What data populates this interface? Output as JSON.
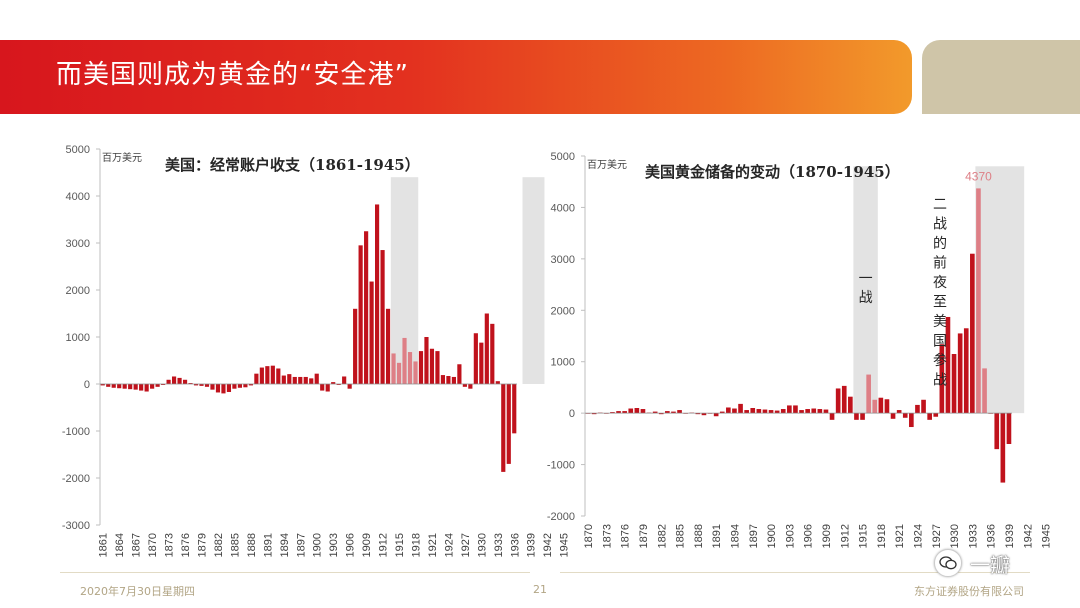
{
  "slide": {
    "title": "而美国则成为黄金的“安全港”",
    "footer_date": "2020年7月30日星期四",
    "page_number": "21",
    "company": "东方证券股份有限公司",
    "watermark": "一瓣"
  },
  "colors": {
    "bar": "#c0121c",
    "bar_light": "#de7f86",
    "shade": "#e3e3e3",
    "banner": "#d7161d"
  },
  "chart_data": [
    {
      "type": "bar",
      "title": "美国：经常账户收支（1861-1945）",
      "unit": "百万美元",
      "ylim": [
        -3000,
        5000
      ],
      "yticks": [
        5000,
        4000,
        3000,
        2000,
        1000,
        0,
        -1000,
        -2000,
        -3000
      ],
      "xticks": [
        "1861",
        "1864",
        "1867",
        "1870",
        "1873",
        "1876",
        "1879",
        "1882",
        "1885",
        "1888",
        "1891",
        "1894",
        "1897",
        "1900",
        "1903",
        "1906",
        "1909",
        "1912",
        "1915",
        "1918",
        "1921",
        "1924",
        "1927",
        "1930",
        "1933",
        "1936",
        "1939",
        "1942",
        "1945"
      ],
      "x_start": 1861,
      "shaded_periods": [
        [
          1914,
          1918
        ],
        [
          1938,
          1941
        ]
      ],
      "values": [
        -30,
        -60,
        -80,
        -90,
        -100,
        -110,
        -120,
        -140,
        -160,
        -100,
        -60,
        -20,
        90,
        160,
        130,
        90,
        20,
        -30,
        -40,
        -60,
        -120,
        -180,
        -200,
        -170,
        -100,
        -80,
        -70,
        -30,
        220,
        350,
        380,
        390,
        330,
        180,
        210,
        150,
        150,
        150,
        120,
        220,
        -140,
        -160,
        40,
        -20,
        160,
        -100,
        1600,
        2950,
        3250,
        2180,
        3820,
        2850,
        1600,
        650,
        450,
        980,
        680,
        480,
        700,
        1000,
        750,
        700,
        190,
        170,
        150,
        420,
        -60,
        -100,
        1080,
        880,
        1500,
        1280,
        60,
        -1870,
        -1700,
        -1050
      ]
    },
    {
      "type": "bar",
      "title": "美国黄金储备的变动（1870-1945）",
      "unit": "百万美元",
      "ylim": [
        -2000,
        5000
      ],
      "yticks": [
        5000,
        4000,
        3000,
        2000,
        1000,
        0,
        -1000,
        -2000
      ],
      "xticks": [
        "1870",
        "1873",
        "1876",
        "1879",
        "1882",
        "1885",
        "1888",
        "1891",
        "1894",
        "1897",
        "1900",
        "1903",
        "1906",
        "1909",
        "1912",
        "1915",
        "1918",
        "1921",
        "1924",
        "1927",
        "1930",
        "1933",
        "1936",
        "1939",
        "1942",
        "1945"
      ],
      "x_start": 1870,
      "shaded_periods": [
        [
          1914,
          1917
        ],
        [
          1934,
          1941
        ]
      ],
      "annotations": [
        "一战",
        "二战的前夜至美国参战"
      ],
      "peak_label": "4370",
      "values": [
        -10,
        -20,
        10,
        -10,
        20,
        40,
        40,
        90,
        100,
        80,
        10,
        30,
        -20,
        40,
        30,
        60,
        -10,
        10,
        -20,
        -40,
        -10,
        -60,
        30,
        110,
        90,
        180,
        60,
        100,
        80,
        70,
        60,
        50,
        80,
        150,
        150,
        60,
        80,
        90,
        80,
        70,
        -130,
        480,
        530,
        320,
        -130,
        -130,
        750,
        260,
        300,
        270,
        -110,
        60,
        -90,
        -270,
        160,
        260,
        -130,
        -70,
        1340,
        1870,
        1150,
        1550,
        1650,
        3100,
        4370,
        870,
        -10,
        -700,
        -1350,
        -600
      ]
    }
  ]
}
